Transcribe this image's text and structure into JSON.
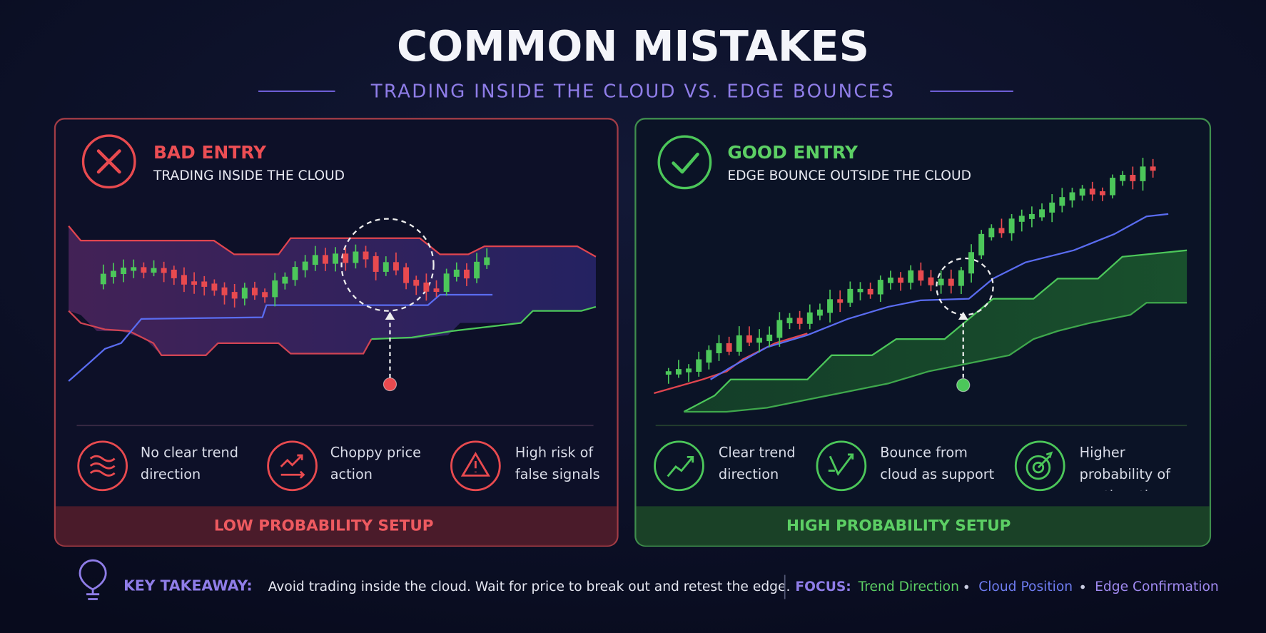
{
  "header": {
    "title": "COMMON MISTAKES",
    "subtitle": "TRADING INSIDE THE CLOUD VS. EDGE BOUNCES"
  },
  "panels": [
    {
      "label": "BAD ENTRY",
      "subtitle": "TRADING INSIDE THE CLOUD",
      "points": [
        "No clear trend direction",
        "Choppy price action",
        "High risk of false signals"
      ],
      "footer": "LOW PROBABILITY SETUP"
    },
    {
      "label": "GOOD ENTRY",
      "subtitle": "EDGE BOUNCE OUTSIDE THE CLOUD",
      "points": [
        "Clear trend direction",
        "Bounce from cloud as support",
        "Higher probability of continuation"
      ],
      "footer": "HIGH PROBABILITY SETUP"
    }
  ],
  "takeaway": {
    "label": "KEY TAKEAWAY:",
    "text": "Avoid trading inside the cloud. Wait for price to break out and retest the edge.",
    "focus_label": "FOCUS:",
    "focus_items": [
      "Trend Direction",
      "Cloud Position",
      "Edge Confirmation"
    ]
  }
}
